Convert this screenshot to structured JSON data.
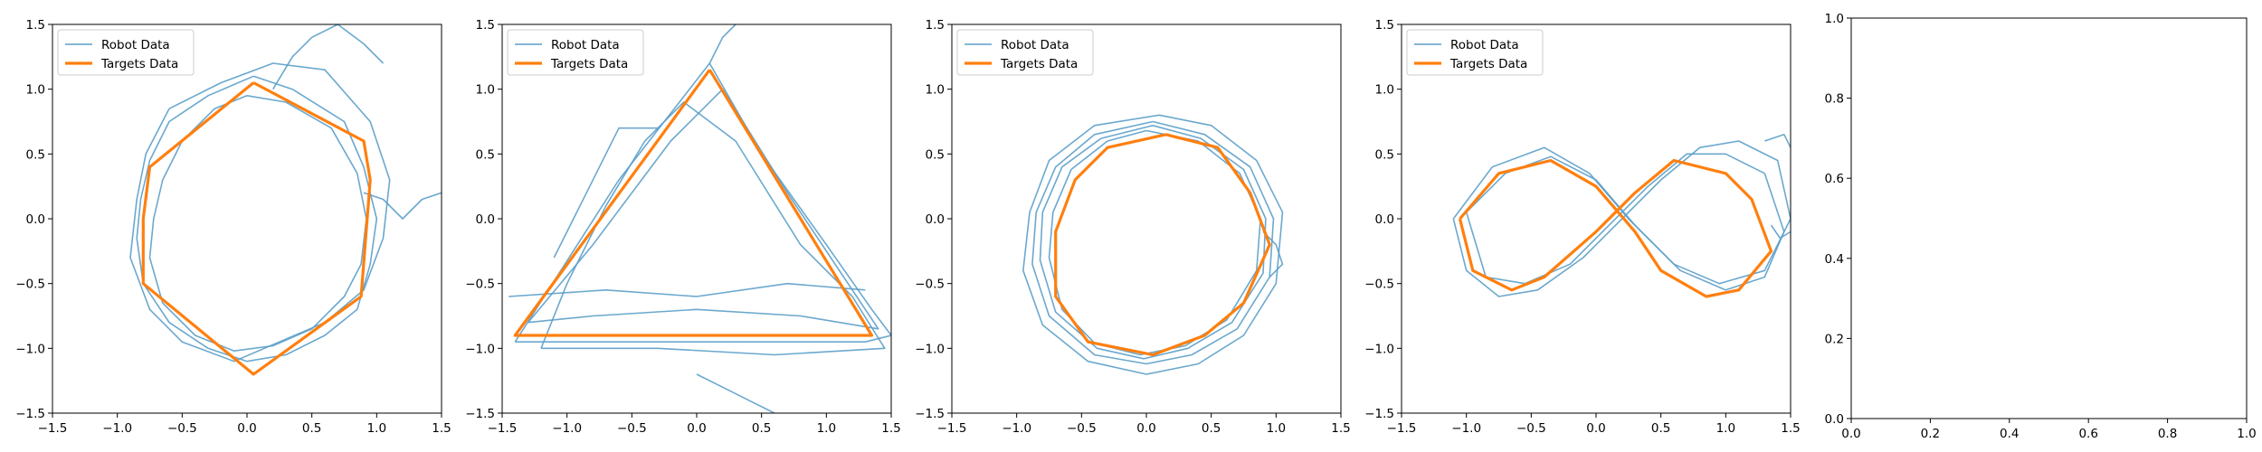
{
  "chart_data": [
    {
      "type": "line",
      "title": "",
      "xlabel": "",
      "ylabel": "",
      "xlim": [
        -1.5,
        1.5
      ],
      "ylim": [
        -1.5,
        1.5
      ],
      "xticks": [
        "−1.5",
        "−1.0",
        "−0.5",
        "0.0",
        "0.5",
        "1.0",
        "1.5"
      ],
      "yticks": [
        "−1.5",
        "−1.0",
        "−0.5",
        "0.0",
        "0.5",
        "1.0",
        "1.5"
      ],
      "legend": {
        "placement": "top-left",
        "entries": [
          "Robot Data",
          "Targets Data"
        ]
      },
      "series": [
        {
          "name": "Targets Data",
          "color": "#ff7f0e",
          "x": [
            0.05,
            0.9,
            0.95,
            0.88,
            0.05,
            -0.8,
            -0.8,
            -0.75,
            0.05
          ],
          "y": [
            1.05,
            0.6,
            0.3,
            -0.6,
            -1.2,
            -0.5,
            0.0,
            0.4,
            1.05
          ]
        },
        {
          "name": "Robot Data",
          "color": "#5b9ec9",
          "x": [
            0.05,
            0.35,
            0.75,
            0.9,
            1.0,
            0.95,
            0.85,
            0.6,
            0.3,
            0.0,
            -0.3,
            -0.6,
            -0.8,
            -0.85,
            -0.82,
            -0.75,
            -0.6,
            -0.3,
            0.05
          ],
          "y": [
            1.1,
            1.0,
            0.75,
            0.4,
            0.0,
            -0.35,
            -0.7,
            -0.9,
            -1.05,
            -1.1,
            -1.0,
            -0.8,
            -0.5,
            -0.15,
            0.15,
            0.45,
            0.75,
            0.95,
            1.1
          ]
        },
        {
          "name": "Robot Data",
          "color": "#5b9ec9",
          "x": [
            0.0,
            0.3,
            0.65,
            0.85,
            0.92,
            0.88,
            0.75,
            0.5,
            0.2,
            -0.1,
            -0.4,
            -0.65,
            -0.75,
            -0.72,
            -0.65,
            -0.5,
            -0.25,
            0.0
          ],
          "y": [
            0.95,
            0.9,
            0.7,
            0.35,
            0.0,
            -0.35,
            -0.6,
            -0.85,
            -0.98,
            -1.02,
            -0.9,
            -0.65,
            -0.3,
            0.0,
            0.3,
            0.6,
            0.85,
            0.95
          ]
        },
        {
          "name": "Robot Data",
          "color": "#5b9ec9",
          "x": [
            -0.6,
            -0.2,
            0.2,
            0.6,
            0.95,
            1.1,
            1.05,
            0.9,
            0.6,
            0.25,
            -0.1,
            -0.5,
            -0.75,
            -0.9,
            -0.85,
            -0.78,
            -0.6
          ],
          "y": [
            0.85,
            1.05,
            1.2,
            1.15,
            0.75,
            0.3,
            -0.15,
            -0.55,
            -0.8,
            -0.95,
            -1.1,
            -0.95,
            -0.7,
            -0.3,
            0.15,
            0.5,
            0.85
          ]
        },
        {
          "name": "Robot Data",
          "color": "#5b9ec9",
          "x": [
            0.2,
            0.35,
            0.5,
            0.7,
            0.9,
            1.05
          ],
          "y": [
            1.0,
            1.25,
            1.4,
            1.5,
            1.35,
            1.2
          ]
        },
        {
          "name": "Robot Data",
          "color": "#5b9ec9",
          "x": [
            0.9,
            1.05,
            1.2,
            1.35,
            1.5
          ],
          "y": [
            0.2,
            0.15,
            0.0,
            0.15,
            0.2
          ]
        }
      ]
    },
    {
      "type": "line",
      "title": "",
      "xlabel": "",
      "ylabel": "",
      "xlim": [
        -1.5,
        1.5
      ],
      "ylim": [
        -1.5,
        1.5
      ],
      "xticks": [
        "−1.5",
        "−1.0",
        "−0.5",
        "0.0",
        "0.5",
        "1.0",
        "1.5"
      ],
      "yticks": [
        "−1.5",
        "−1.0",
        "−0.5",
        "0.0",
        "0.5",
        "1.0",
        "1.5"
      ],
      "legend": {
        "placement": "top-left",
        "entries": [
          "Robot Data",
          "Targets Data"
        ]
      },
      "series": [
        {
          "name": "Targets Data",
          "color": "#ff7f0e",
          "x": [
            0.1,
            1.35,
            -1.4,
            0.1
          ],
          "y": [
            1.15,
            -0.9,
            -0.9,
            1.15
          ]
        },
        {
          "name": "Robot Data",
          "color": "#5b9ec9",
          "x": [
            -1.4,
            -0.6,
            0.1,
            0.5,
            1.0,
            1.35,
            1.5,
            1.3,
            0.5,
            -0.5,
            -1.4
          ],
          "y": [
            -0.95,
            0.3,
            1.2,
            0.5,
            -0.2,
            -0.7,
            -0.9,
            -0.95,
            -0.95,
            -0.95,
            -0.95
          ]
        },
        {
          "name": "Robot Data",
          "color": "#5b9ec9",
          "x": [
            -1.3,
            -0.8,
            -0.2,
            0.2,
            0.7,
            1.1,
            1.4,
            0.8,
            0.0,
            -0.8,
            -1.3
          ],
          "y": [
            -0.8,
            -0.2,
            0.6,
            1.0,
            0.2,
            -0.4,
            -0.85,
            -0.75,
            -0.7,
            -0.75,
            -0.8
          ]
        },
        {
          "name": "Robot Data",
          "color": "#5b9ec9",
          "x": [
            -1.2,
            -1.0,
            -0.7,
            -0.4,
            -0.1,
            0.3,
            0.8,
            1.2,
            1.45,
            0.6,
            -0.3,
            -1.2
          ],
          "y": [
            -1.0,
            -0.5,
            0.1,
            0.6,
            0.9,
            0.6,
            -0.2,
            -0.6,
            -1.0,
            -1.05,
            -1.0,
            -1.0
          ]
        },
        {
          "name": "Robot Data",
          "color": "#5b9ec9",
          "x": [
            -1.1,
            -0.9,
            -0.6,
            -0.3
          ],
          "y": [
            -0.3,
            0.1,
            0.7,
            0.7
          ]
        },
        {
          "name": "Robot Data",
          "color": "#5b9ec9",
          "x": [
            0.1,
            0.2,
            0.3
          ],
          "y": [
            1.2,
            1.4,
            1.5
          ]
        },
        {
          "name": "Robot Data",
          "color": "#5b9ec9",
          "x": [
            0.0,
            0.2,
            0.4,
            0.6
          ],
          "y": [
            -1.2,
            -1.3,
            -1.4,
            -1.5
          ]
        },
        {
          "name": "Robot Data",
          "color": "#5b9ec9",
          "x": [
            -1.45,
            -0.7,
            0.0,
            0.7,
            1.3
          ],
          "y": [
            -0.6,
            -0.55,
            -0.6,
            -0.5,
            -0.55
          ]
        }
      ]
    },
    {
      "type": "line",
      "title": "",
      "xlabel": "",
      "ylabel": "",
      "xlim": [
        -1.5,
        1.5
      ],
      "ylim": [
        -1.5,
        1.5
      ],
      "xticks": [
        "−1.5",
        "−1.0",
        "−0.5",
        "0.0",
        "0.5",
        "1.0",
        "1.5"
      ],
      "yticks": [
        "−1.5",
        "−1.0",
        "−0.5",
        "0.0",
        "0.5",
        "1.0",
        "1.5"
      ],
      "legend": {
        "placement": "top-left",
        "entries": [
          "Robot Data",
          "Targets Data"
        ]
      },
      "series": [
        {
          "name": "Targets Data",
          "color": "#ff7f0e",
          "x": [
            0.15,
            0.55,
            0.8,
            0.95,
            0.75,
            0.45,
            0.05,
            -0.45,
            -0.7,
            -0.7,
            -0.55,
            -0.3,
            0.15
          ],
          "y": [
            0.65,
            0.55,
            0.2,
            -0.2,
            -0.65,
            -0.9,
            -1.05,
            -0.95,
            -0.6,
            -0.1,
            0.3,
            0.55,
            0.65
          ]
        },
        {
          "name": "Robot Data",
          "color": "#5b9ec9",
          "x": [
            0.05,
            0.45,
            0.8,
            0.98,
            0.95,
            0.7,
            0.35,
            0.0,
            -0.4,
            -0.75,
            -0.88,
            -0.85,
            -0.7,
            -0.4,
            0.05
          ],
          "y": [
            0.75,
            0.65,
            0.4,
            0.0,
            -0.45,
            -0.85,
            -1.05,
            -1.12,
            -1.05,
            -0.75,
            -0.35,
            0.05,
            0.4,
            0.65,
            0.75
          ]
        },
        {
          "name": "Robot Data",
          "color": "#5b9ec9",
          "x": [
            0.0,
            0.4,
            0.72,
            0.88,
            0.85,
            0.62,
            0.3,
            -0.05,
            -0.4,
            -0.65,
            -0.75,
            -0.72,
            -0.58,
            -0.3,
            0.0
          ],
          "y": [
            0.68,
            0.6,
            0.35,
            0.0,
            -0.4,
            -0.78,
            -0.98,
            -1.05,
            -0.96,
            -0.7,
            -0.3,
            0.05,
            0.38,
            0.6,
            0.68
          ]
        },
        {
          "name": "Robot Data",
          "color": "#5b9ec9",
          "x": [
            0.1,
            0.5,
            0.85,
            1.05,
            1.0,
            0.75,
            0.4,
            0.0,
            -0.45,
            -0.8,
            -0.95,
            -0.9,
            -0.75,
            -0.4,
            0.1
          ],
          "y": [
            0.8,
            0.72,
            0.45,
            0.05,
            -0.5,
            -0.9,
            -1.12,
            -1.2,
            -1.1,
            -0.82,
            -0.4,
            0.05,
            0.45,
            0.72,
            0.8
          ]
        },
        {
          "name": "Robot Data",
          "color": "#5b9ec9",
          "x": [
            0.05,
            0.42,
            0.75,
            0.92,
            0.9,
            0.66,
            0.32,
            -0.02,
            -0.38,
            -0.7,
            -0.82,
            -0.8,
            -0.65,
            -0.35,
            0.05
          ],
          "y": [
            0.72,
            0.62,
            0.38,
            0.0,
            -0.42,
            -0.8,
            -1.0,
            -1.08,
            -1.0,
            -0.72,
            -0.32,
            0.05,
            0.4,
            0.62,
            0.72
          ]
        },
        {
          "name": "Robot Data",
          "color": "#5b9ec9",
          "x": [
            0.9,
            1.0,
            1.05,
            0.95
          ],
          "y": [
            -0.1,
            -0.2,
            -0.35,
            -0.45
          ]
        }
      ]
    },
    {
      "type": "line",
      "title": "",
      "xlabel": "",
      "ylabel": "",
      "xlim": [
        -1.5,
        1.5
      ],
      "ylim": [
        -1.5,
        1.5
      ],
      "xticks": [
        "−1.5",
        "−1.0",
        "−0.5",
        "0.0",
        "0.5",
        "1.0",
        "1.5"
      ],
      "yticks": [
        "−1.5",
        "−1.0",
        "−0.5",
        "0.0",
        "0.5",
        "1.0",
        "1.5"
      ],
      "legend": {
        "placement": "top-left",
        "entries": [
          "Robot Data",
          "Targets Data"
        ]
      },
      "series": [
        {
          "name": "Targets Data",
          "color": "#ff7f0e",
          "x": [
            -1.05,
            -0.75,
            -0.35,
            0.0,
            0.3,
            0.5,
            0.85,
            1.1,
            1.35,
            1.2,
            1.0,
            0.6,
            0.3,
            0.0,
            -0.4,
            -0.65,
            -0.95,
            -1.05
          ],
          "y": [
            0.0,
            0.35,
            0.45,
            0.25,
            -0.1,
            -0.4,
            -0.6,
            -0.55,
            -0.25,
            0.15,
            0.35,
            0.45,
            0.2,
            -0.1,
            -0.45,
            -0.55,
            -0.4,
            0.0
          ]
        },
        {
          "name": "Robot Data",
          "color": "#5b9ec9",
          "x": [
            -1.1,
            -0.8,
            -0.4,
            -0.05,
            0.25,
            0.6,
            0.95,
            1.3,
            1.5,
            1.4,
            1.1,
            0.8,
            0.5,
            0.2,
            -0.1,
            -0.45,
            -0.75,
            -1.0,
            -1.1
          ],
          "y": [
            0.0,
            0.4,
            0.55,
            0.35,
            0.0,
            -0.35,
            -0.5,
            -0.4,
            0.0,
            0.45,
            0.6,
            0.55,
            0.3,
            0.0,
            -0.3,
            -0.55,
            -0.6,
            -0.4,
            0.0
          ]
        },
        {
          "name": "Robot Data",
          "color": "#5b9ec9",
          "x": [
            -1.0,
            -0.7,
            -0.35,
            0.0,
            0.3,
            0.65,
            1.0,
            1.3,
            1.45,
            1.3,
            1.0,
            0.7,
            0.4,
            0.1,
            -0.2,
            -0.55,
            -0.85,
            -1.0
          ],
          "y": [
            0.05,
            0.35,
            0.48,
            0.3,
            -0.05,
            -0.4,
            -0.55,
            -0.45,
            -0.1,
            0.35,
            0.5,
            0.5,
            0.25,
            -0.05,
            -0.35,
            -0.5,
            -0.45,
            0.05
          ]
        },
        {
          "name": "Robot Data",
          "color": "#5b9ec9",
          "x": [
            1.3,
            1.45,
            1.5
          ],
          "y": [
            0.6,
            0.65,
            0.55
          ]
        },
        {
          "name": "Robot Data",
          "color": "#5b9ec9",
          "x": [
            1.35,
            1.42,
            1.5
          ],
          "y": [
            -0.05,
            -0.15,
            -0.1
          ]
        }
      ]
    },
    {
      "type": "line",
      "title": "",
      "xlabel": "",
      "ylabel": "",
      "xlim": [
        0.0,
        1.0
      ],
      "ylim": [
        0.0,
        1.0
      ],
      "xticks": [
        "0.0",
        "0.2",
        "0.4",
        "0.6",
        "0.8",
        "1.0"
      ],
      "yticks": [
        "0.0",
        "0.2",
        "0.4",
        "0.6",
        "0.8",
        "1.0"
      ],
      "legend": null,
      "series": []
    }
  ]
}
